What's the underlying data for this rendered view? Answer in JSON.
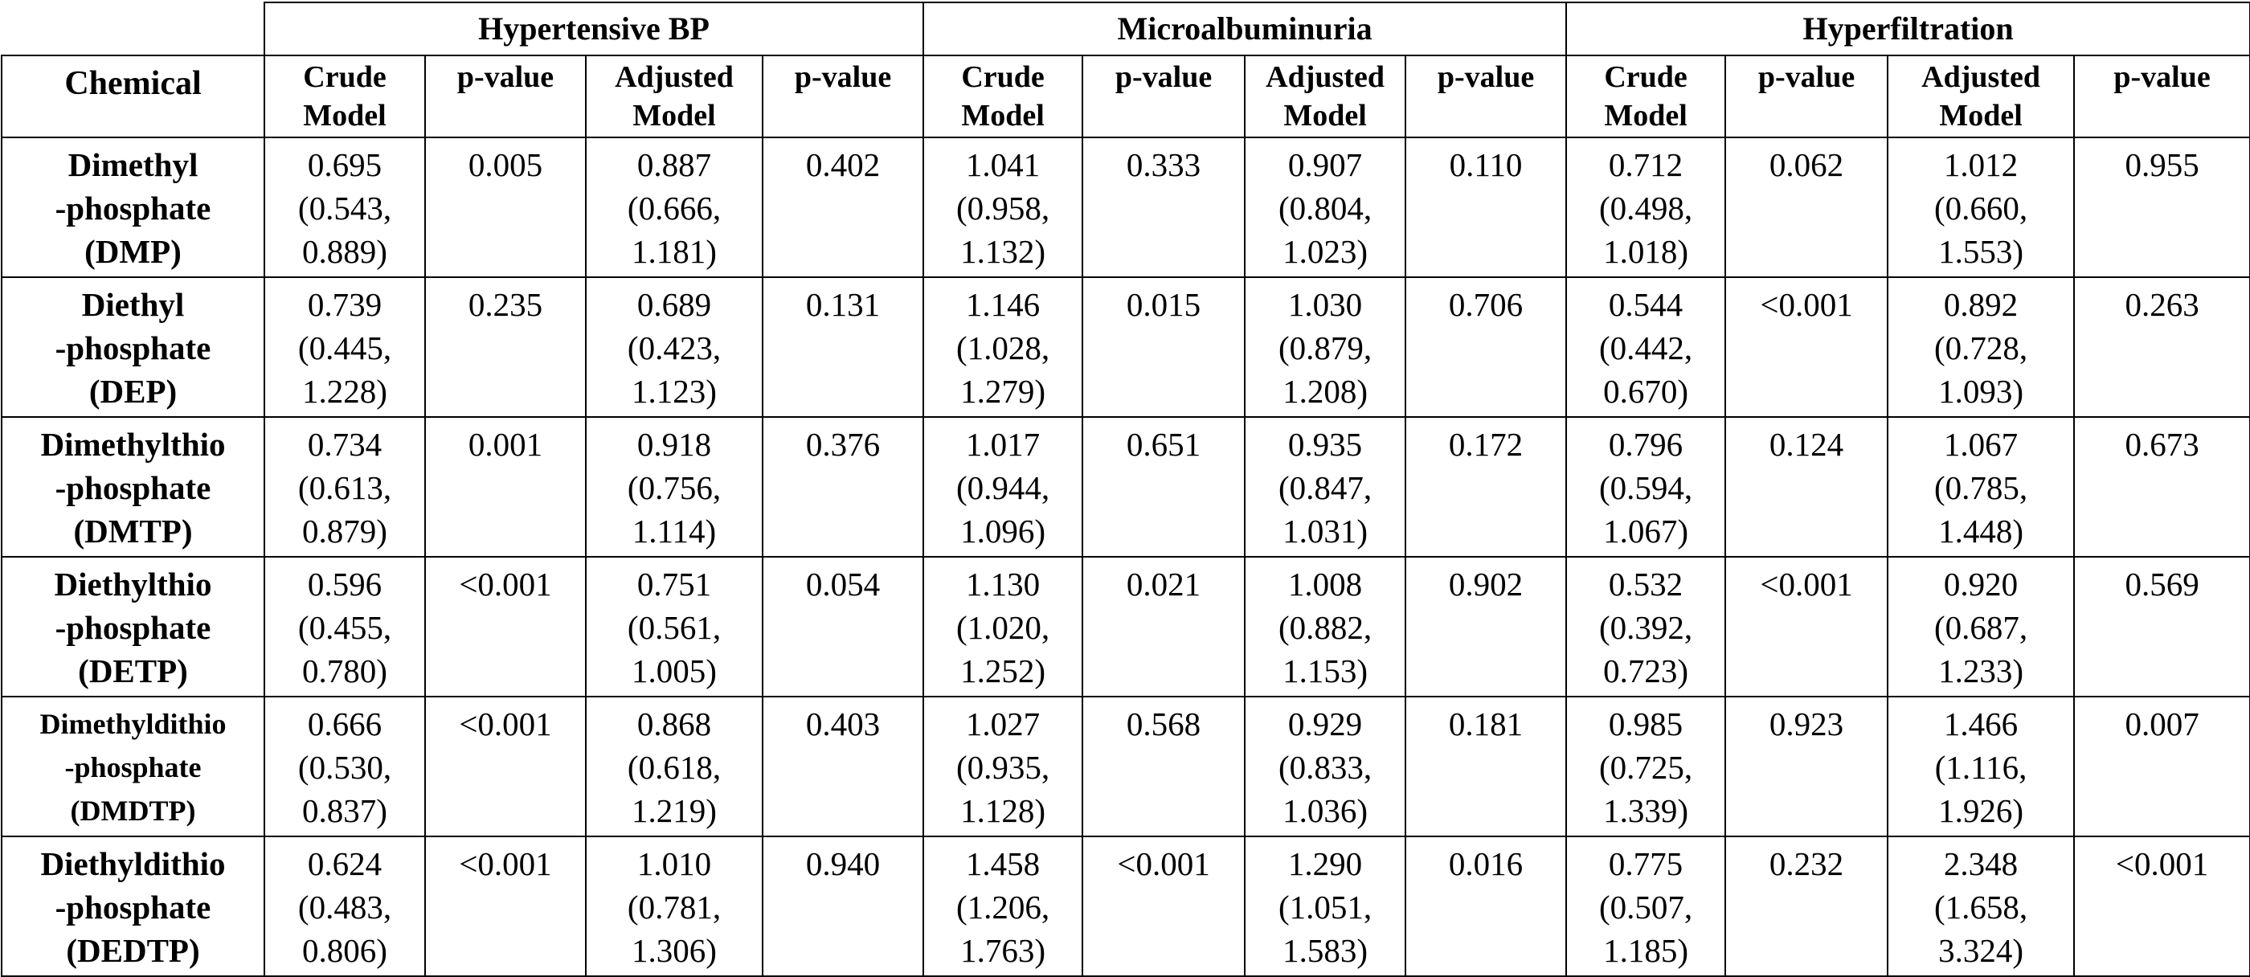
{
  "table": {
    "groups": [
      "Hypertensive BP",
      "Microalbuminuria",
      "Hyperfiltration"
    ],
    "chemical_header": "Chemical",
    "subheaders": [
      [
        "Crude",
        "Model"
      ],
      [
        "p-value"
      ],
      [
        "Adjusted",
        "Model"
      ],
      [
        "p-value"
      ],
      [
        "Crude",
        "Model"
      ],
      [
        "p-value"
      ],
      [
        "Adjusted",
        "Model"
      ],
      [
        "p-value"
      ],
      [
        "Crude",
        "Model"
      ],
      [
        "p-value"
      ],
      [
        "Adjusted",
        "Model"
      ],
      [
        "p-value"
      ]
    ],
    "rows": [
      {
        "chemical": [
          "Dimethyl",
          "-phosphate",
          "(DMP)"
        ],
        "cells": [
          [
            "0.695",
            "(0.543,",
            "0.889)"
          ],
          [
            "0.005"
          ],
          [
            "0.887",
            "(0.666,",
            "1.181)"
          ],
          [
            "0.402"
          ],
          [
            "1.041",
            "(0.958,",
            "1.132)"
          ],
          [
            "0.333"
          ],
          [
            "0.907",
            "(0.804,",
            "1.023)"
          ],
          [
            "0.110"
          ],
          [
            "0.712",
            "(0.498,",
            "1.018)"
          ],
          [
            "0.062"
          ],
          [
            "1.012",
            "(0.660,",
            "1.553)"
          ],
          [
            "0.955"
          ]
        ]
      },
      {
        "chemical": [
          "Diethyl",
          "-phosphate",
          "(DEP)"
        ],
        "cells": [
          [
            "0.739",
            "(0.445,",
            "1.228)"
          ],
          [
            "0.235"
          ],
          [
            "0.689",
            "(0.423,",
            "1.123)"
          ],
          [
            "0.131"
          ],
          [
            "1.146",
            "(1.028,",
            "1.279)"
          ],
          [
            "0.015"
          ],
          [
            "1.030",
            "(0.879,",
            "1.208)"
          ],
          [
            "0.706"
          ],
          [
            "0.544",
            "(0.442,",
            "0.670)"
          ],
          [
            "<0.001"
          ],
          [
            "0.892",
            "(0.728,",
            "1.093)"
          ],
          [
            "0.263"
          ]
        ]
      },
      {
        "chemical": [
          "Dimethylthio",
          "-phosphate",
          "(DMTP)"
        ],
        "cells": [
          [
            "0.734",
            "(0.613,",
            "0.879)"
          ],
          [
            "0.001"
          ],
          [
            "0.918",
            "(0.756,",
            "1.114)"
          ],
          [
            "0.376"
          ],
          [
            "1.017",
            "(0.944,",
            "1.096)"
          ],
          [
            "0.651"
          ],
          [
            "0.935",
            "(0.847,",
            "1.031)"
          ],
          [
            "0.172"
          ],
          [
            "0.796",
            "(0.594,",
            "1.067)"
          ],
          [
            "0.124"
          ],
          [
            "1.067",
            "(0.785,",
            "1.448)"
          ],
          [
            "0.673"
          ]
        ]
      },
      {
        "chemical": [
          "Diethylthio",
          "-phosphate",
          "(DETP)"
        ],
        "cells": [
          [
            "0.596",
            "(0.455,",
            "0.780)"
          ],
          [
            "<0.001"
          ],
          [
            "0.751",
            "(0.561,",
            "1.005)"
          ],
          [
            "0.054"
          ],
          [
            "1.130",
            "(1.020,",
            "1.252)"
          ],
          [
            "0.021"
          ],
          [
            "1.008",
            "(0.882,",
            "1.153)"
          ],
          [
            "0.902"
          ],
          [
            "0.532",
            "(0.392,",
            "0.723)"
          ],
          [
            "<0.001"
          ],
          [
            "0.920",
            "(0.687,",
            "1.233)"
          ],
          [
            "0.569"
          ]
        ]
      },
      {
        "chemical": [
          "Dimethyldithio",
          "-phosphate",
          "(DMDTP)"
        ],
        "small": true,
        "cells": [
          [
            "0.666",
            "(0.530,",
            "0.837)"
          ],
          [
            "<0.001"
          ],
          [
            "0.868",
            "(0.618,",
            "1.219)"
          ],
          [
            "0.403"
          ],
          [
            "1.027",
            "(0.935,",
            "1.128)"
          ],
          [
            "0.568"
          ],
          [
            "0.929",
            "(0.833,",
            "1.036)"
          ],
          [
            "0.181"
          ],
          [
            "0.985",
            "(0.725,",
            "1.339)"
          ],
          [
            "0.923"
          ],
          [
            "1.466",
            "(1.116,",
            "1.926)"
          ],
          [
            "0.007"
          ]
        ]
      },
      {
        "chemical": [
          "Diethyldithio",
          "-phosphate",
          "(DEDTP)"
        ],
        "cells": [
          [
            "0.624",
            "(0.483,",
            "0.806)"
          ],
          [
            "<0.001"
          ],
          [
            "1.010",
            "(0.781,",
            "1.306)"
          ],
          [
            "0.940"
          ],
          [
            "1.458",
            "(1.206,",
            "1.763)"
          ],
          [
            "<0.001"
          ],
          [
            "1.290",
            "(1.051,",
            "1.583)"
          ],
          [
            "0.016"
          ],
          [
            "0.775",
            "(0.507,",
            "1.185)"
          ],
          [
            "0.232"
          ],
          [
            "2.348",
            "(1.658,",
            "3.324)"
          ],
          [
            "<0.001"
          ]
        ]
      }
    ]
  }
}
